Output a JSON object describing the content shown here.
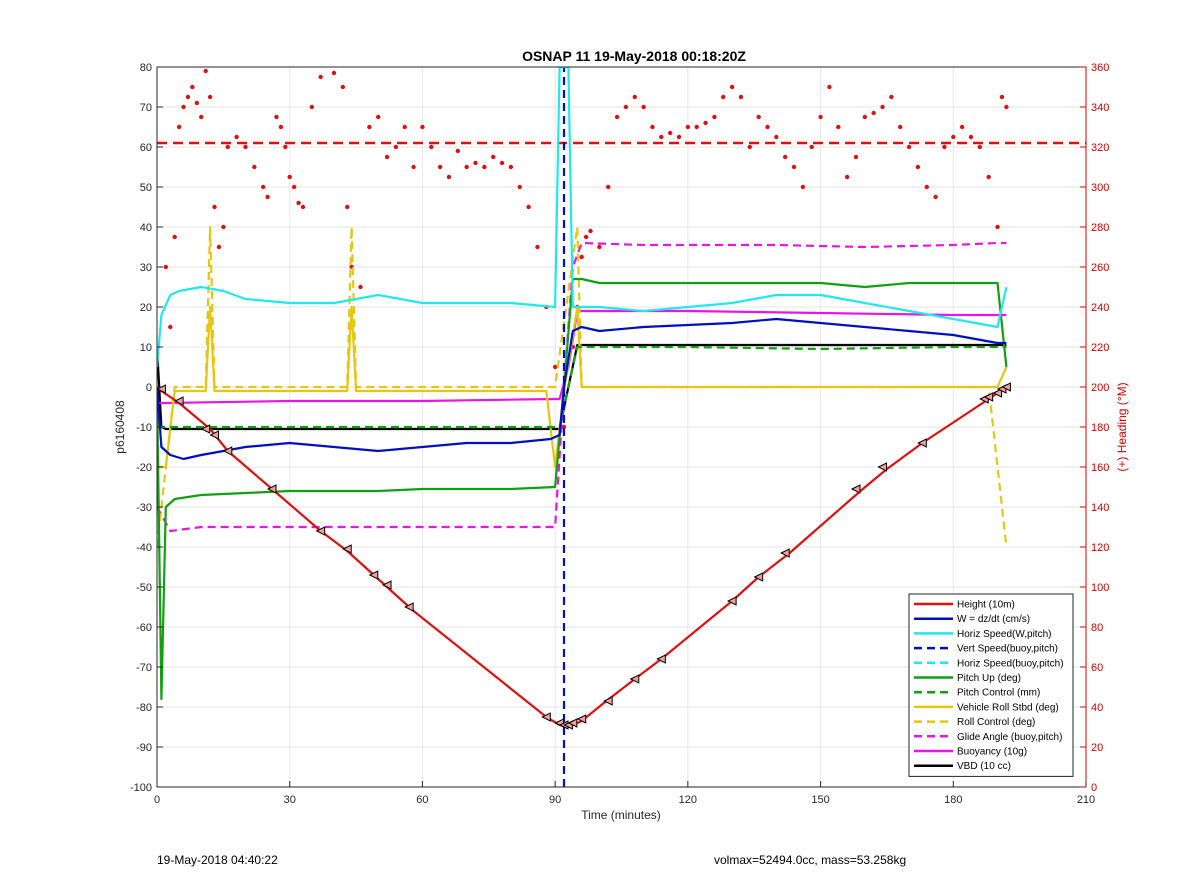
{
  "chart_data": {
    "type": "line",
    "title": "OSNAP 11 19-May-2018 00:18:20Z",
    "xlabel": "Time (minutes)",
    "ylabel": "p6160408",
    "ylabel_right": "(+) Heading (°M)",
    "xlim": [
      0,
      210
    ],
    "ylim": [
      -100,
      80
    ],
    "ylim_right": [
      0,
      360
    ],
    "x_ticks": [
      0,
      30,
      60,
      90,
      120,
      150,
      180,
      210
    ],
    "y_ticks": [
      -100,
      -90,
      -80,
      -70,
      -60,
      -50,
      -40,
      -30,
      -20,
      -10,
      0,
      10,
      20,
      30,
      40,
      50,
      60,
      70,
      80
    ],
    "y_ticks_right": [
      0,
      20,
      40,
      60,
      80,
      100,
      120,
      140,
      160,
      180,
      200,
      220,
      240,
      260,
      280,
      300,
      320,
      340,
      360
    ],
    "grid": true,
    "legend_position": "bottom-right",
    "series": [
      {
        "name": "Height (10m)",
        "color": "#dd1111",
        "style": "solid",
        "x": [
          0,
          1,
          5,
          12,
          16,
          26,
          37,
          43,
          49,
          52,
          58,
          88,
          91,
          93,
          96,
          101,
          108,
          114,
          130,
          136,
          143,
          159,
          165,
          173,
          188,
          190,
          192
        ],
        "y": [
          0,
          -1,
          -4,
          -10.5,
          -16,
          -25.5,
          -36,
          -41,
          -47,
          -50,
          -56,
          -82.5,
          -84.5,
          -85,
          -83.5,
          -79,
          -73,
          -68,
          -53.5,
          -47.5,
          -41.5,
          -26,
          -20.5,
          -14,
          -3,
          -1.5,
          0
        ]
      },
      {
        "name": "W = dz/dt (cm/s)",
        "color": "#0010c0",
        "style": "solid",
        "x": [
          0,
          1,
          3,
          6,
          10,
          20,
          30,
          40,
          50,
          60,
          70,
          80,
          89,
          91,
          92,
          94,
          96,
          100,
          110,
          120,
          130,
          140,
          150,
          160,
          170,
          180,
          185,
          190,
          192
        ],
        "y": [
          0,
          -15,
          -17,
          -18,
          -17,
          -15,
          -14,
          -15,
          -16,
          -15,
          -14,
          -14,
          -13,
          -12,
          0,
          14,
          15,
          14,
          15,
          15.5,
          16,
          17,
          16,
          15,
          14,
          13,
          12,
          11,
          11
        ]
      },
      {
        "name": "Horiz Speed(W,pitch)",
        "color": "#22e8ee",
        "style": "solid",
        "x": [
          0,
          1,
          3,
          5,
          10,
          15,
          20,
          30,
          40,
          50,
          60,
          70,
          80,
          90,
          91,
          92,
          93,
          94,
          96,
          100,
          110,
          120,
          130,
          140,
          150,
          160,
          170,
          180,
          185,
          190,
          192
        ],
        "y": [
          5,
          18,
          23,
          24,
          25,
          24,
          22,
          21,
          21,
          23,
          21,
          21,
          21,
          20,
          80,
          80,
          80,
          20,
          20,
          20,
          19,
          20,
          21,
          23,
          23,
          21,
          19,
          17,
          16,
          15,
          25
        ]
      },
      {
        "name": "Vert Speed(buoy,pitch)",
        "color": "#0010c0",
        "style": "dashed",
        "x": [
          92,
          92
        ],
        "y": [
          -100,
          80
        ]
      },
      {
        "name": "Horiz Speed(buoy,pitch)",
        "color": "#22e8ee",
        "style": "dashed",
        "x": [
          91,
          93
        ],
        "y": [
          80,
          80
        ]
      },
      {
        "name": "Pitch Up (deg)",
        "color": "#12a012",
        "style": "solid",
        "x": [
          0,
          1,
          2,
          4,
          10,
          20,
          30,
          40,
          50,
          60,
          70,
          80,
          90,
          92,
          94,
          96,
          100,
          110,
          120,
          130,
          140,
          150,
          160,
          170,
          180,
          190,
          192
        ],
        "y": [
          0,
          -78,
          -30,
          -28,
          -27,
          -26.5,
          -26,
          -26,
          -26,
          -25.5,
          -25.5,
          -25.5,
          -25,
          0,
          27,
          27,
          26,
          26,
          26,
          26,
          26,
          26,
          25,
          26,
          26,
          26,
          5
        ]
      },
      {
        "name": "Pitch Control (mm)",
        "color": "#12a012",
        "style": "dashed",
        "x": [
          0,
          2,
          20,
          40,
          60,
          80,
          91,
          93,
          95,
          120,
          150,
          180,
          192
        ],
        "y": [
          -10,
          -10,
          -10,
          -10,
          -10,
          -10,
          -10,
          0,
          10,
          10,
          9.5,
          10,
          10
        ]
      },
      {
        "name": "Vehicle Roll Stbd (deg)",
        "color": "#e6c611",
        "style": "solid",
        "x": [
          0,
          2,
          4,
          11,
          12,
          13,
          20,
          30,
          40,
          43,
          44,
          45,
          60,
          80,
          88,
          90,
          92,
          95,
          96,
          100,
          130,
          140,
          150,
          165,
          180,
          190,
          192
        ],
        "y": [
          -20,
          -20,
          -1,
          -1,
          20,
          -1,
          -1,
          -1,
          -1,
          -1,
          20,
          -1,
          -1,
          -1,
          -1,
          -20,
          -1,
          20,
          0,
          0,
          0,
          0,
          0,
          0,
          0,
          0,
          5
        ]
      },
      {
        "name": "Roll Control (deg)",
        "color": "#e6c611",
        "style": "dashed",
        "x": [
          0,
          4,
          11,
          12,
          13,
          20,
          43,
          44,
          45,
          90,
          95,
          96,
          110,
          120,
          150,
          180,
          188,
          192
        ],
        "y": [
          -40,
          0,
          0,
          40,
          0,
          0,
          0,
          40,
          0,
          0,
          40,
          0,
          0,
          0,
          0,
          0,
          0,
          -40
        ]
      },
      {
        "name": "Glide Angle (buoy,pitch)",
        "color": "#e617e6",
        "style": "dashed",
        "x": [
          0,
          3,
          10,
          20,
          40,
          60,
          80,
          90,
          92,
          94,
          96,
          110,
          120,
          140,
          160,
          180,
          190,
          192
        ],
        "y": [
          -30,
          -36,
          -35,
          -35,
          -35,
          -35,
          -35,
          -35,
          0,
          30,
          36,
          35.5,
          35.5,
          35.5,
          35,
          35.5,
          36,
          36
        ]
      },
      {
        "name": "Buoyancy (10g)",
        "color": "#e617e6",
        "style": "solid",
        "x": [
          0,
          1,
          2,
          30,
          60,
          90,
          91,
          93,
          95,
          120,
          150,
          180,
          192
        ],
        "y": [
          -4,
          -4,
          -4,
          -3.5,
          -3.5,
          -3,
          -3,
          5,
          19,
          19,
          18.5,
          18,
          18
        ]
      },
      {
        "name": "VBD (10 cc)",
        "color": "#000000",
        "style": "solid",
        "x": [
          0,
          1,
          2,
          30,
          60,
          90,
          91,
          93,
          95,
          120,
          150,
          180,
          192
        ],
        "y": [
          10,
          -10,
          -10.5,
          -10.5,
          -10.5,
          -10.5,
          -10.5,
          0,
          10.5,
          10.5,
          10.5,
          10.5,
          10.5
        ]
      }
    ],
    "heading_series": {
      "name": "(+) Heading",
      "color": "#dd1111",
      "x": [
        2,
        3,
        4,
        5,
        6,
        7,
        8,
        9,
        10,
        11,
        12,
        13,
        14,
        15,
        16,
        18,
        20,
        22,
        24,
        25,
        27,
        28,
        29,
        30,
        31,
        32,
        33,
        35,
        37,
        40,
        42,
        43,
        44,
        46,
        48,
        50,
        52,
        54,
        56,
        58,
        60,
        62,
        64,
        66,
        68,
        70,
        72,
        74,
        76,
        78,
        80,
        82,
        84,
        86,
        88,
        90,
        92,
        94,
        95,
        96,
        97,
        98,
        100,
        102,
        104,
        106,
        108,
        110,
        112,
        114,
        116,
        118,
        120,
        122,
        124,
        126,
        128,
        130,
        132,
        134,
        136,
        138,
        140,
        142,
        144,
        146,
        148,
        150,
        152,
        154,
        156,
        158,
        160,
        162,
        164,
        166,
        168,
        170,
        172,
        174,
        176,
        178,
        180,
        182,
        184,
        186,
        188,
        190,
        191,
        192
      ],
      "y": [
        260,
        230,
        275,
        330,
        340,
        345,
        350,
        342,
        335,
        358,
        345,
        290,
        270,
        280,
        320,
        325,
        320,
        310,
        300,
        295,
        335,
        330,
        320,
        305,
        300,
        292,
        290,
        340,
        355,
        357,
        350,
        290,
        260,
        250,
        330,
        335,
        315,
        320,
        330,
        310,
        330,
        320,
        310,
        305,
        318,
        310,
        312,
        310,
        315,
        312,
        310,
        300,
        290,
        270,
        240,
        210,
        180,
        220,
        240,
        265,
        275,
        278,
        270,
        300,
        335,
        340,
        345,
        340,
        330,
        325,
        327,
        325,
        330,
        330,
        332,
        335,
        345,
        350,
        345,
        320,
        335,
        330,
        325,
        315,
        310,
        300,
        320,
        335,
        350,
        330,
        305,
        315,
        335,
        337,
        340,
        345,
        330,
        320,
        310,
        300,
        295,
        320,
        325,
        330,
        325,
        320,
        305,
        280,
        345,
        340
      ]
    },
    "markers": {
      "name": "Height markers",
      "x": [
        1,
        5,
        11,
        13,
        16,
        26,
        37,
        43,
        49,
        52,
        57,
        88,
        91,
        92,
        93,
        94,
        96,
        102,
        108,
        114,
        130,
        136,
        142,
        158,
        164,
        173,
        187,
        188,
        190,
        191,
        192
      ],
      "y": [
        -0.5,
        -3.5,
        -10.5,
        -12,
        -16,
        -25.5,
        -36,
        -40.5,
        -47,
        -49.5,
        -55,
        -82.5,
        -84,
        -84.5,
        -84.5,
        -84,
        -83,
        -78.5,
        -73,
        -68,
        -53.5,
        -47.5,
        -41.5,
        -25.5,
        -20,
        -14,
        -3,
        -2.5,
        -1.5,
        -0.5,
        0
      ]
    },
    "footer_left": "19-May-2018 04:40:22",
    "footer_right": "volmax=52494.0cc, mass=53.258kg"
  }
}
